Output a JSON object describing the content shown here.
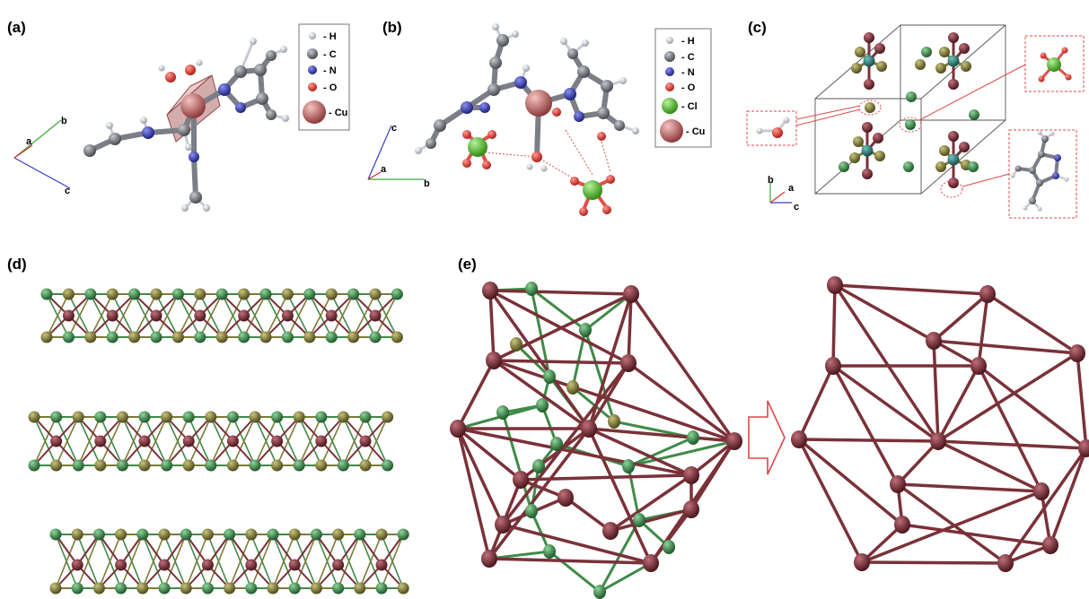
{
  "panels": {
    "a": {
      "label": "(a)",
      "axes": {
        "b": "b",
        "a": "a",
        "c": "c"
      }
    },
    "b": {
      "label": "(b)",
      "axes": {
        "c": "c",
        "a": "a",
        "b": "b"
      }
    },
    "c": {
      "label": "(c)",
      "axes": {
        "b": "b",
        "a": "a",
        "c": "c"
      }
    },
    "d": {
      "label": "(d)"
    },
    "e": {
      "label": "(e)"
    }
  },
  "legend_a": [
    "- H",
    "- C",
    "- N",
    "- O",
    "- Cu"
  ],
  "legend_b": [
    "- H",
    "- C",
    "- N",
    "- O",
    "- Cl",
    "- Cu"
  ],
  "colors": {
    "H": "#b9bcc4",
    "C": "#6e7076",
    "N": "#2f35a8",
    "O": "#e0302a",
    "Cl": "#52c022",
    "Cu": "#c06a6a",
    "maroon": "#7a3138",
    "green": "#3f8a48",
    "olive": "#7d7a38",
    "teal": "#2f7d76",
    "annot": "#e04848"
  }
}
